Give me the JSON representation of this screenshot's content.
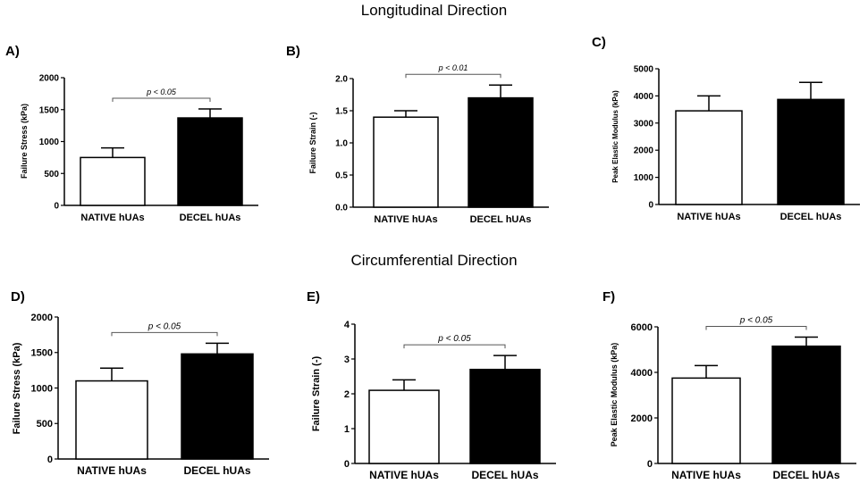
{
  "sections": {
    "longitudinal": "Longitudinal  Direction",
    "circumferential": "Circumferential Direction"
  },
  "colors": {
    "native_fill": "#ffffff",
    "decel_fill": "#000000",
    "axis": "#000000",
    "sig_bar": "#555555"
  },
  "chart_data": [
    {
      "type": "bar",
      "panel": "A)",
      "direction": "Longitudinal",
      "categories": [
        "NATIVE hUAs",
        "DECEL hUAs"
      ],
      "values": [
        750,
        1370
      ],
      "errors": [
        150,
        140
      ],
      "ylabel": "Failure Stress (kPa)",
      "ylim": [
        0,
        2000
      ],
      "yticks": [
        0,
        500,
        1000,
        1500,
        2000
      ],
      "tick_labels": [
        "0",
        "500",
        "1000",
        "1500",
        "2000"
      ],
      "significance": "p < 0.05"
    },
    {
      "type": "bar",
      "panel": "B)",
      "direction": "Longitudinal",
      "categories": [
        "NATIVE hUAs",
        "DECEL hUAs"
      ],
      "values": [
        1.4,
        1.7
      ],
      "errors": [
        0.1,
        0.2
      ],
      "ylabel": "Failure Strain (-)",
      "ylim": [
        0,
        2.0
      ],
      "yticks": [
        0,
        0.5,
        1.0,
        1.5,
        2.0
      ],
      "tick_labels": [
        "0.0",
        "0.5",
        "1.0",
        "1.5",
        "2.0"
      ],
      "significance": "p < 0.01"
    },
    {
      "type": "bar",
      "panel": "C)",
      "direction": "Longitudinal",
      "categories": [
        "NATIVE hUAs",
        "DECEL hUAs"
      ],
      "values": [
        3450,
        3870
      ],
      "errors": [
        550,
        630
      ],
      "ylabel": "Peak Elastic Modulus (kPa)",
      "ylim": [
        0,
        5000
      ],
      "yticks": [
        0,
        1000,
        2000,
        3000,
        4000,
        5000
      ],
      "tick_labels": [
        "0",
        "1000",
        "2000",
        "3000",
        "4000",
        "5000"
      ],
      "significance": ""
    },
    {
      "type": "bar",
      "panel": "D)",
      "direction": "Circumferential",
      "categories": [
        "NATIVE hUAs",
        "DECEL hUAs"
      ],
      "values": [
        1100,
        1480
      ],
      "errors": [
        180,
        150
      ],
      "ylabel": "Failure Stress (kPa)",
      "ylim": [
        0,
        2000
      ],
      "yticks": [
        0,
        500,
        1000,
        1500,
        2000
      ],
      "tick_labels": [
        "0",
        "500",
        "1000",
        "1500",
        "2000"
      ],
      "significance": "p < 0.05"
    },
    {
      "type": "bar",
      "panel": "E)",
      "direction": "Circumferential",
      "categories": [
        "NATIVE hUAs",
        "DECEL hUAs"
      ],
      "values": [
        2.1,
        2.7
      ],
      "errors": [
        0.3,
        0.4
      ],
      "ylabel": "Failure Strain (-)",
      "ylim": [
        0,
        4
      ],
      "yticks": [
        0,
        1,
        2,
        3,
        4
      ],
      "tick_labels": [
        "0",
        "1",
        "2",
        "3",
        "4"
      ],
      "significance": "p < 0.05"
    },
    {
      "type": "bar",
      "panel": "F)",
      "direction": "Circumferential",
      "categories": [
        "NATIVE hUAs",
        "DECEL hUAs"
      ],
      "values": [
        3750,
        5150
      ],
      "errors": [
        550,
        400
      ],
      "ylabel": "Peak Elastic Modulus (kPa)",
      "ylim": [
        0,
        6000
      ],
      "yticks": [
        0,
        2000,
        4000,
        6000
      ],
      "tick_labels": [
        "0",
        "2000",
        "4000",
        "6000"
      ],
      "significance": "p < 0.05"
    }
  ]
}
